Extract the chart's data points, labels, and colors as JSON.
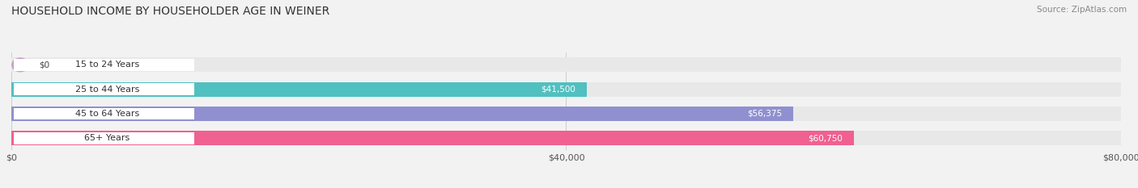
{
  "title": "HOUSEHOLD INCOME BY HOUSEHOLDER AGE IN WEINER",
  "source": "Source: ZipAtlas.com",
  "categories": [
    "15 to 24 Years",
    "25 to 44 Years",
    "45 to 64 Years",
    "65+ Years"
  ],
  "values": [
    0,
    41500,
    56375,
    60750
  ],
  "bar_colors": [
    "#c8a0c8",
    "#50c0c0",
    "#9090d0",
    "#f06090"
  ],
  "bar_bg_color": "#e8e8e8",
  "value_labels": [
    "$0",
    "$41,500",
    "$56,375",
    "$60,750"
  ],
  "xlim": [
    0,
    80000
  ],
  "xticks": [
    0,
    40000,
    80000
  ],
  "xticklabels": [
    "$0",
    "$40,000",
    "$80,000"
  ],
  "title_fontsize": 10,
  "source_fontsize": 7.5,
  "label_fontsize": 8,
  "value_fontsize": 7.5,
  "tick_fontsize": 8,
  "background_color": "#f2f2f2"
}
